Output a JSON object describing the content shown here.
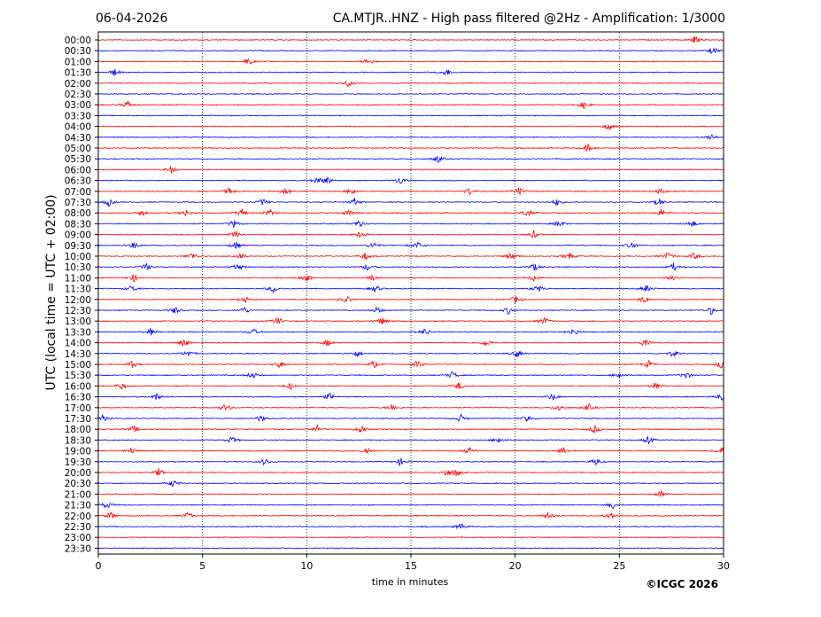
{
  "chart_data": {
    "type": "line",
    "subtype": "helicorder",
    "date": "06-04-2026",
    "title": "CA.MTJR..HNZ - High pass filtered @2Hz - Amplification: 1/3000",
    "xlabel": "time in minutes",
    "ylabel": "UTC (local time = UTC + 02:00)",
    "copyright": "©ICGC 2026",
    "xlim": [
      0,
      30
    ],
    "x_ticks": [
      "0",
      "5",
      "10",
      "15",
      "20",
      "25",
      "30"
    ],
    "x_tick_values": [
      0,
      5,
      10,
      15,
      20,
      25,
      30
    ],
    "grid": "vertical dotted at 5, 10, 15, 20, 25",
    "row_colors": [
      "#ff0000",
      "#0000ff"
    ],
    "color_rule": "alternating by hour: full hour traces red, half hour traces blue",
    "rows": [
      {
        "label": "00:00",
        "color": "#ff0000",
        "events_min": [
          28.6
        ]
      },
      {
        "label": "00:30",
        "color": "#0000ff",
        "events_min": [
          29.5
        ]
      },
      {
        "label": "01:00",
        "color": "#ff0000",
        "events_min": [
          7.2,
          13.0
        ]
      },
      {
        "label": "01:30",
        "color": "#0000ff",
        "events_min": [
          0.8,
          16.7
        ]
      },
      {
        "label": "02:00",
        "color": "#ff0000",
        "events_min": [
          12.0
        ]
      },
      {
        "label": "02:30",
        "color": "#0000ff",
        "events_min": []
      },
      {
        "label": "03:00",
        "color": "#ff0000",
        "events_min": [
          1.4,
          23.3
        ]
      },
      {
        "label": "03:30",
        "color": "#0000ff",
        "events_min": []
      },
      {
        "label": "04:00",
        "color": "#ff0000",
        "events_min": [
          24.5
        ]
      },
      {
        "label": "04:30",
        "color": "#0000ff",
        "events_min": [
          29.4
        ]
      },
      {
        "label": "05:00",
        "color": "#ff0000",
        "events_min": [
          23.5
        ]
      },
      {
        "label": "05:30",
        "color": "#0000ff",
        "events_min": [
          16.3
        ]
      },
      {
        "label": "06:00",
        "color": "#ff0000",
        "events_min": [
          3.5
        ]
      },
      {
        "label": "06:30",
        "color": "#0000ff",
        "events_min": [
          10.5,
          11.0,
          14.5
        ]
      },
      {
        "label": "07:00",
        "color": "#ff0000",
        "events_min": [
          6.3,
          9.0,
          12.2,
          17.8,
          20.2,
          27.0
        ]
      },
      {
        "label": "07:30",
        "color": "#0000ff",
        "events_min": [
          0.5,
          7.9,
          12.3,
          22.0,
          26.9
        ]
      },
      {
        "label": "08:00",
        "color": "#ff0000",
        "events_min": [
          2.1,
          4.2,
          6.9,
          8.2,
          12.0,
          20.6,
          27.0
        ]
      },
      {
        "label": "08:30",
        "color": "#0000ff",
        "events_min": [
          6.5,
          12.5,
          22.1,
          28.5
        ]
      },
      {
        "label": "09:00",
        "color": "#ff0000",
        "events_min": [
          6.6,
          12.6,
          20.9
        ]
      },
      {
        "label": "09:30",
        "color": "#0000ff",
        "events_min": [
          1.7,
          6.6,
          13.2,
          15.3,
          25.6
        ]
      },
      {
        "label": "10:00",
        "color": "#ff0000",
        "events_min": [
          4.5,
          6.8,
          12.8,
          19.8,
          22.6,
          27.3,
          28.6
        ]
      },
      {
        "label": "10:30",
        "color": "#0000ff",
        "events_min": [
          2.3,
          6.7,
          12.9,
          20.9,
          27.6
        ]
      },
      {
        "label": "11:00",
        "color": "#ff0000",
        "events_min": [
          1.7,
          10.0,
          13.1,
          20.9,
          27.6
        ]
      },
      {
        "label": "11:30",
        "color": "#0000ff",
        "events_min": [
          1.6,
          8.4,
          13.3,
          21.1,
          26.3
        ]
      },
      {
        "label": "12:00",
        "color": "#ff0000",
        "events_min": [
          7.0,
          11.9,
          20.0,
          26.2
        ]
      },
      {
        "label": "12:30",
        "color": "#0000ff",
        "events_min": [
          3.7,
          7.0,
          13.4,
          19.7,
          29.4
        ]
      },
      {
        "label": "13:00",
        "color": "#ff0000",
        "events_min": [
          8.6,
          13.6,
          21.4
        ]
      },
      {
        "label": "13:30",
        "color": "#0000ff",
        "events_min": [
          2.5,
          7.4,
          15.7,
          22.8
        ]
      },
      {
        "label": "14:00",
        "color": "#ff0000",
        "events_min": [
          4.1,
          11.0,
          18.6,
          26.2
        ]
      },
      {
        "label": "14:30",
        "color": "#0000ff",
        "events_min": [
          4.3,
          12.4,
          20.1,
          27.6
        ]
      },
      {
        "label": "15:00",
        "color": "#ff0000",
        "events_min": [
          1.6,
          8.7,
          13.2,
          15.3,
          26.4,
          29.9
        ]
      },
      {
        "label": "15:30",
        "color": "#0000ff",
        "events_min": [
          7.4,
          17.0,
          25.0,
          28.2
        ]
      },
      {
        "label": "16:00",
        "color": "#ff0000",
        "events_min": [
          1.1,
          9.2,
          17.3,
          26.7
        ]
      },
      {
        "label": "16:30",
        "color": "#0000ff",
        "events_min": [
          2.8,
          11.1,
          21.8,
          29.9
        ]
      },
      {
        "label": "17:00",
        "color": "#ff0000",
        "events_min": [
          6.1,
          14.1,
          22.1,
          23.5
        ]
      },
      {
        "label": "17:30",
        "color": "#0000ff",
        "events_min": [
          0.2,
          7.8,
          17.4,
          20.6
        ]
      },
      {
        "label": "18:00",
        "color": "#ff0000",
        "events_min": [
          1.7,
          10.5,
          12.6,
          23.8
        ]
      },
      {
        "label": "18:30",
        "color": "#0000ff",
        "events_min": [
          6.4,
          19.2,
          26.4
        ]
      },
      {
        "label": "19:00",
        "color": "#ff0000",
        "events_min": [
          1.6,
          12.9,
          17.8,
          22.3,
          29.9
        ]
      },
      {
        "label": "19:30",
        "color": "#0000ff",
        "events_min": [
          8.0,
          14.5,
          23.9
        ]
      },
      {
        "label": "20:00",
        "color": "#ff0000",
        "events_min": [
          2.9,
          16.7,
          17.2
        ]
      },
      {
        "label": "20:30",
        "color": "#0000ff",
        "events_min": [
          3.6
        ]
      },
      {
        "label": "21:00",
        "color": "#ff0000",
        "events_min": [
          27.0
        ]
      },
      {
        "label": "21:30",
        "color": "#0000ff",
        "events_min": [
          0.4,
          24.7
        ]
      },
      {
        "label": "22:00",
        "color": "#ff0000",
        "events_min": [
          0.6,
          4.3,
          21.6,
          24.6
        ]
      },
      {
        "label": "22:30",
        "color": "#0000ff",
        "events_min": [
          17.4
        ]
      },
      {
        "label": "23:00",
        "color": "#ff0000",
        "events_min": []
      },
      {
        "label": "23:30",
        "color": "#0000ff",
        "events_min": []
      }
    ]
  }
}
